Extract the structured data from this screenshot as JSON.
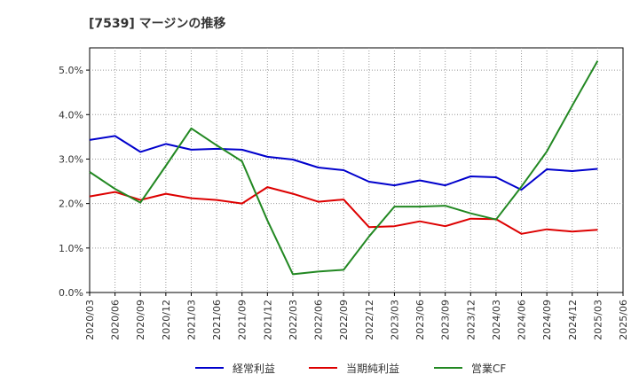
{
  "chart_data": {
    "type": "line",
    "title": "[7539]  マージンの推移",
    "xlabel": "",
    "ylabel": "",
    "ylim": [
      0,
      0.055
    ],
    "yticks": [
      "0.0%",
      "1.0%",
      "2.0%",
      "3.0%",
      "4.0%",
      "5.0%"
    ],
    "grid": true,
    "legend_position": "bottom",
    "categories": [
      "2020/03",
      "2020/06",
      "2020/09",
      "2020/12",
      "2021/03",
      "2021/06",
      "2021/09",
      "2021/12",
      "2022/03",
      "2022/06",
      "2022/09",
      "2022/12",
      "2023/03",
      "2023/06",
      "2023/09",
      "2023/12",
      "2024/03",
      "2024/06",
      "2024/09",
      "2024/12",
      "2025/03",
      "2025/06"
    ],
    "series": [
      {
        "name": "経常利益",
        "color": "#0000cc",
        "values": [
          0.0343,
          0.0352,
          0.0316,
          0.0334,
          0.0321,
          0.0323,
          0.0321,
          0.0305,
          0.0299,
          0.0281,
          0.0275,
          0.0249,
          0.0241,
          0.0252,
          0.0241,
          0.0261,
          0.0259,
          0.0231,
          0.0277,
          0.0273,
          0.0278,
          null
        ]
      },
      {
        "name": "当期純利益",
        "color": "#dd0000",
        "values": [
          0.0216,
          0.0226,
          0.0208,
          0.0222,
          0.0212,
          0.0208,
          0.02,
          0.0237,
          0.0222,
          0.0204,
          0.0209,
          0.0147,
          0.0149,
          0.016,
          0.0149,
          0.0166,
          0.0165,
          0.0132,
          0.0142,
          0.0137,
          0.0141,
          null
        ]
      },
      {
        "name": "営業CF",
        "color": "#228822",
        "values": [
          0.0271,
          0.0233,
          0.0202,
          0.0285,
          0.0369,
          0.0331,
          0.0295,
          0.0162,
          0.0041,
          0.0047,
          0.0051,
          0.0126,
          0.0193,
          0.0193,
          0.0195,
          0.0178,
          0.0164,
          0.0238,
          0.0317,
          0.042,
          0.0521,
          null
        ]
      }
    ]
  }
}
